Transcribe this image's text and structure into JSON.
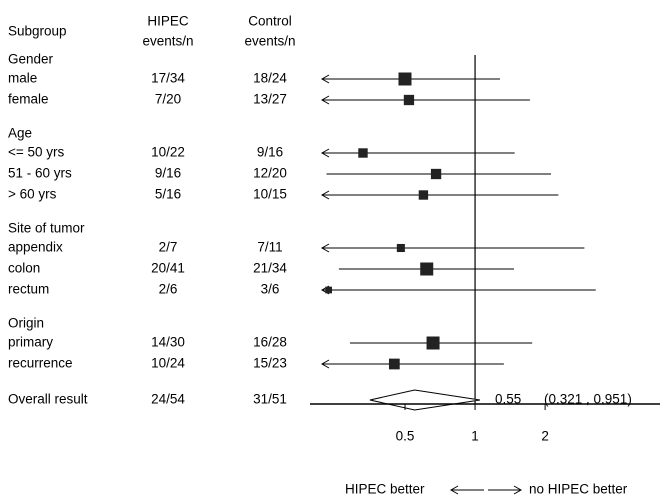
{
  "chart_data": {
    "type": "forest",
    "x_scale": "log",
    "xlim": [
      0.22,
      3.8
    ],
    "reference_line": 1,
    "x_ticks": [
      {
        "value": 0.5,
        "label": "0.5"
      },
      {
        "value": 1,
        "label": "1"
      },
      {
        "value": 2,
        "label": "2"
      }
    ],
    "headers": {
      "subgroup": "Subgroup",
      "hipec_line1": "HIPEC",
      "hipec_line2": "events/n",
      "control_line1": "Control",
      "control_line2": "events/n"
    },
    "groups": [
      {
        "title": "Gender",
        "rows": [
          {
            "label": "male",
            "hipec": "17/34",
            "control": "18/24",
            "estimate": 0.5,
            "lower": null,
            "upper": 1.28,
            "weight": 1.0
          },
          {
            "label": "female",
            "hipec": "7/20",
            "control": "13/27",
            "estimate": 0.52,
            "lower": null,
            "upper": 1.72,
            "weight": 0.7
          }
        ]
      },
      {
        "title": "Age",
        "rows": [
          {
            "label": "<= 50 yrs",
            "hipec": "10/22",
            "control": "9/16",
            "estimate": 0.33,
            "lower": null,
            "upper": 1.48,
            "weight": 0.6
          },
          {
            "label": "51 - 60 yrs",
            "hipec": "9/16",
            "control": "12/20",
            "estimate": 0.68,
            "lower": 0.23,
            "upper": 2.12,
            "weight": 0.7
          },
          {
            "label": "> 60 yrs",
            "hipec": "5/16",
            "control": "10/15",
            "estimate": 0.6,
            "lower": null,
            "upper": 2.28,
            "weight": 0.6
          }
        ]
      },
      {
        "title": "Site of tumor",
        "rows": [
          {
            "label": "appendix",
            "hipec": "2/7",
            "control": "7/11",
            "estimate": 0.48,
            "lower": null,
            "upper": 2.95,
            "weight": 0.45
          },
          {
            "label": "colon",
            "hipec": "20/41",
            "control": "21/34",
            "estimate": 0.62,
            "lower": 0.26,
            "upper": 1.47,
            "weight": 1.0
          },
          {
            "label": "rectum",
            "hipec": "2/6",
            "control": "3/6",
            "estimate": 0.235,
            "lower": null,
            "upper": 3.3,
            "weight": 0.3
          }
        ]
      },
      {
        "title": "Origin",
        "rows": [
          {
            "label": "primary",
            "hipec": "14/30",
            "control": "16/28",
            "estimate": 0.66,
            "lower": 0.29,
            "upper": 1.76,
            "weight": 1.0
          },
          {
            "label": "recurrence",
            "hipec": "10/24",
            "control": "15/23",
            "estimate": 0.45,
            "lower": null,
            "upper": 1.33,
            "weight": 0.75
          }
        ]
      }
    ],
    "overall": {
      "label": "Overall result",
      "hipec": "24/54",
      "control": "31/51",
      "estimate": 0.55,
      "lower": 0.321,
      "upper": 0.951,
      "estimate_text": "0.55",
      "ci_text": "(0.321 , 0.951)"
    },
    "footer": {
      "left": "HIPEC better",
      "right": "no HIPEC better"
    }
  }
}
